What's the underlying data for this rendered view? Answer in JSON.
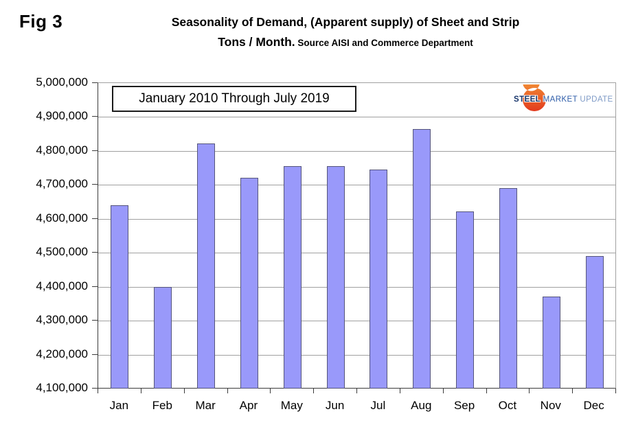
{
  "figure_label": "Fig 3",
  "title": {
    "line1": "Seasonality of Demand, (Apparent supply) of Sheet and Strip",
    "line2_main": "Tons / Month.",
    "line2_source": " Source AISI and Commerce Department"
  },
  "legend_caption": "January 2010 Through July 2019",
  "logo": {
    "steel": "STEEL",
    "market": "MARKET",
    "update": "UPDATE",
    "steel_color": "#17356b",
    "market_color": "#2e5da9",
    "update_color": "#7e9ac6",
    "swoosh_top_color": "#f6a63c",
    "swoosh_bottom_color": "#e23a1e"
  },
  "chart_data": {
    "type": "bar",
    "title": "Seasonality of Demand, (Apparent supply) of Sheet and Strip Tons / Month.",
    "subtitle": "Source AISI and Commerce Department",
    "annotation": "January 2010 Through July 2019",
    "categories": [
      "Jan",
      "Feb",
      "Mar",
      "Apr",
      "May",
      "Jun",
      "Jul",
      "Aug",
      "Sep",
      "Oct",
      "Nov",
      "Dec"
    ],
    "values": [
      4640000,
      4400000,
      4822000,
      4721000,
      4756000,
      4755000,
      4746000,
      4865000,
      4622000,
      4690000,
      4372000,
      4490000
    ],
    "xlabel": "",
    "ylabel": "",
    "ylim": [
      4100000,
      5000000
    ],
    "ytick_step": 100000,
    "grid": true,
    "legend_position": "top-left-box",
    "bar_color": "#9999fa",
    "bar_border_color": "#55557a",
    "grid_color": "#a0a0a0",
    "axis_color": "#3a3a3a"
  }
}
